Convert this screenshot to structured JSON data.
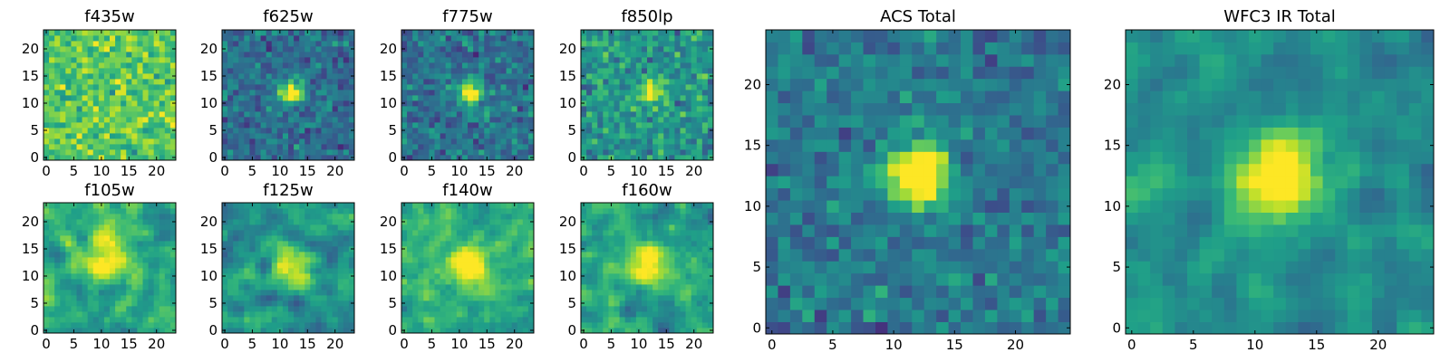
{
  "chart_data": [
    {
      "id": "f435w",
      "type": "heatmap",
      "title": "f435w",
      "grid": 24,
      "xlim": [
        -0.5,
        23.5
      ],
      "ylim": [
        -0.5,
        23.5
      ],
      "xticks": [
        0,
        5,
        10,
        15,
        20
      ],
      "yticks": [
        0,
        5,
        10,
        15,
        20
      ],
      "colormap": "viridis",
      "peak": [
        12,
        12
      ],
      "signal": 0.0,
      "sigma": 2.2,
      "base": 0.74,
      "noise": 0.3,
      "smooth": 0,
      "seed": 11
    },
    {
      "id": "f625w",
      "type": "heatmap",
      "title": "f625w",
      "grid": 24,
      "xlim": [
        -0.5,
        23.5
      ],
      "ylim": [
        -0.5,
        23.5
      ],
      "xticks": [
        0,
        5,
        10,
        15,
        20
      ],
      "yticks": [
        0,
        5,
        10,
        15,
        20
      ],
      "colormap": "viridis",
      "peak": [
        12,
        12
      ],
      "signal": 0.62,
      "sigma": 1.4,
      "base": 0.36,
      "noise": 0.26,
      "smooth": 0,
      "seed": 23
    },
    {
      "id": "f775w",
      "type": "heatmap",
      "title": "f775w",
      "grid": 24,
      "xlim": [
        -0.5,
        23.5
      ],
      "ylim": [
        -0.5,
        23.5
      ],
      "xticks": [
        0,
        5,
        10,
        15,
        20
      ],
      "yticks": [
        0,
        5,
        10,
        15,
        20
      ],
      "colormap": "viridis",
      "peak": [
        12,
        12
      ],
      "signal": 0.55,
      "sigma": 1.5,
      "base": 0.38,
      "noise": 0.28,
      "smooth": 0,
      "seed": 37
    },
    {
      "id": "f850lp",
      "type": "heatmap",
      "title": "f850lp",
      "grid": 24,
      "xlim": [
        -0.5,
        23.5
      ],
      "ylim": [
        -0.5,
        23.5
      ],
      "xticks": [
        0,
        5,
        10,
        15,
        20
      ],
      "yticks": [
        0,
        5,
        10,
        15,
        20
      ],
      "colormap": "viridis",
      "peak": [
        12,
        12
      ],
      "signal": 0.45,
      "sigma": 1.5,
      "base": 0.52,
      "noise": 0.3,
      "smooth": 0,
      "seed": 41
    },
    {
      "id": "f105w",
      "type": "heatmap",
      "title": "f105w",
      "grid": 24,
      "xlim": [
        -0.5,
        23.5
      ],
      "ylim": [
        -0.5,
        23.5
      ],
      "xticks": [
        0,
        5,
        10,
        15,
        20
      ],
      "yticks": [
        0,
        5,
        10,
        15,
        20
      ],
      "colormap": "viridis",
      "peak": [
        11,
        13
      ],
      "signal": 0.35,
      "sigma": 3.0,
      "base": 0.6,
      "noise": 0.34,
      "smooth": 1,
      "seed": 53
    },
    {
      "id": "f125w",
      "type": "heatmap",
      "title": "f125w",
      "grid": 24,
      "xlim": [
        -0.5,
        23.5
      ],
      "ylim": [
        -0.5,
        23.5
      ],
      "xticks": [
        0,
        5,
        10,
        15,
        20
      ],
      "yticks": [
        0,
        5,
        10,
        15,
        20
      ],
      "colormap": "viridis",
      "peak": [
        12,
        12
      ],
      "signal": 0.38,
      "sigma": 2.6,
      "base": 0.52,
      "noise": 0.34,
      "smooth": 1,
      "seed": 67
    },
    {
      "id": "f140w",
      "type": "heatmap",
      "title": "f140w",
      "grid": 24,
      "xlim": [
        -0.5,
        23.5
      ],
      "ylim": [
        -0.5,
        23.5
      ],
      "xticks": [
        0,
        5,
        10,
        15,
        20
      ],
      "yticks": [
        0,
        5,
        10,
        15,
        20
      ],
      "colormap": "viridis",
      "peak": [
        12,
        12
      ],
      "signal": 0.3,
      "sigma": 3.0,
      "base": 0.62,
      "noise": 0.34,
      "smooth": 1,
      "seed": 79
    },
    {
      "id": "f160w",
      "type": "heatmap",
      "title": "f160w",
      "grid": 24,
      "xlim": [
        -0.5,
        23.5
      ],
      "ylim": [
        -0.5,
        23.5
      ],
      "xticks": [
        0,
        5,
        10,
        15,
        20
      ],
      "yticks": [
        0,
        5,
        10,
        15,
        20
      ],
      "colormap": "viridis",
      "peak": [
        12,
        12
      ],
      "signal": 0.34,
      "sigma": 2.8,
      "base": 0.58,
      "noise": 0.34,
      "smooth": 1,
      "seed": 83
    },
    {
      "id": "acs_total",
      "type": "heatmap",
      "title": "ACS Total",
      "grid": 25,
      "xlim": [
        -0.5,
        24.5
      ],
      "ylim": [
        -0.5,
        24.5
      ],
      "xticks": [
        0,
        5,
        10,
        15,
        20
      ],
      "yticks": [
        0,
        5,
        10,
        15,
        20
      ],
      "colormap": "viridis",
      "peak": [
        12,
        12.5
      ],
      "signal": 0.78,
      "sigma": 1.6,
      "base": 0.4,
      "noise": 0.24,
      "smooth": 0,
      "seed": 97
    },
    {
      "id": "wfc3_total",
      "type": "heatmap",
      "title": "WFC3 IR Total",
      "grid": 25,
      "xlim": [
        -0.5,
        24.5
      ],
      "ylim": [
        -0.5,
        24.5
      ],
      "xticks": [
        0,
        5,
        10,
        15,
        20
      ],
      "yticks": [
        0,
        5,
        10,
        15,
        20
      ],
      "colormap": "viridis",
      "peak": [
        12,
        12.5
      ],
      "signal": 0.48,
      "sigma": 2.6,
      "base": 0.5,
      "noise": 0.26,
      "smooth": 1,
      "seed": 101
    }
  ]
}
